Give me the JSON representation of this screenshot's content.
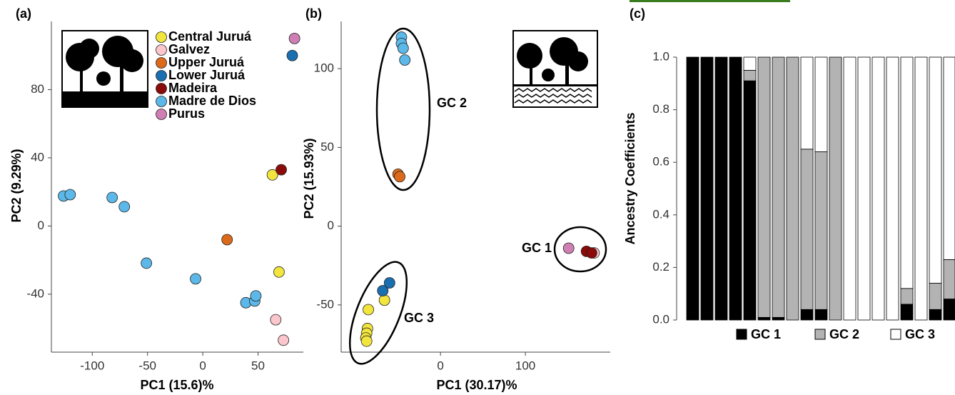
{
  "chart_data": [
    {
      "type": "scatter",
      "panel_label": "(a)",
      "x_label": "PC1 (15.6)%",
      "y_label": "PC2 (9.29%)",
      "xlim": [
        -137,
        91
      ],
      "ylim": [
        -74,
        120
      ],
      "xticks": [
        -100,
        -50,
        0,
        50
      ],
      "yticks": [
        80,
        40,
        0,
        -40
      ],
      "legend": true,
      "series": [
        {
          "name": "Central Juruá",
          "color": "#f2e53d",
          "x": [
            63,
            69
          ],
          "values": [
            30,
            -27
          ]
        },
        {
          "name": "Galvez",
          "color": "#fbc6cc",
          "x": [
            66,
            73
          ],
          "values": [
            -55,
            -67
          ]
        },
        {
          "name": "Upper Juruá",
          "color": "#dd6a1a",
          "x": [
            22
          ],
          "values": [
            -8
          ]
        },
        {
          "name": "Lower Juruá",
          "color": "#1a6fb0",
          "x": [
            81
          ],
          "values": [
            100
          ]
        },
        {
          "name": "Madeira",
          "color": "#8b0a0a",
          "x": [
            71
          ],
          "values": [
            33
          ]
        },
        {
          "name": "Madre de Dios",
          "color": "#5bb8e8",
          "x": [
            -126,
            -120,
            -82,
            -71,
            -51,
            -6.5,
            39,
            47,
            48
          ],
          "values": [
            17.6,
            18.4,
            16.7,
            11.3,
            -21.8,
            -31,
            -45,
            -44,
            -41
          ]
        },
        {
          "name": "Purus",
          "color": "#d07fb4",
          "x": [
            83
          ],
          "values": [
            110
          ]
        }
      ]
    },
    {
      "type": "scatter",
      "panel_label": "(b)",
      "x_label": "PC1 (30.17)%",
      "y_label": "PC2 (15.93%)",
      "xlim": [
        -117,
        200
      ],
      "ylim": [
        -80,
        130
      ],
      "xticks": [
        0,
        100
      ],
      "yticks": [
        100,
        50,
        0,
        -50
      ],
      "legend": false,
      "annotations": [
        "GC 2",
        "GC 3",
        "GC 1"
      ],
      "series": [
        {
          "color": "#f2e53d",
          "x": [
            -66,
            -85,
            -86,
            -87,
            -88,
            -87
          ],
          "values": [
            -47,
            -53,
            -65,
            -68,
            -71,
            -73
          ]
        },
        {
          "color": "#fbc6cc",
          "x": [
            181
          ],
          "values": [
            -17
          ]
        },
        {
          "color": "#dd6a1a",
          "x": [
            -50,
            -48
          ],
          "values": [
            33,
            31.4
          ]
        },
        {
          "color": "#1a6fb0",
          "x": [
            -68,
            -60
          ],
          "values": [
            -41,
            -36
          ]
        },
        {
          "color": "#8b0a0a",
          "x": [
            172,
            178
          ],
          "values": [
            -16,
            -17
          ]
        },
        {
          "color": "#5bb8e8",
          "x": [
            -46,
            -46,
            -44,
            -42
          ],
          "values": [
            120,
            116,
            113,
            105.5
          ]
        },
        {
          "color": "#d07fb4",
          "x": [
            151
          ],
          "values": [
            -14
          ]
        }
      ]
    },
    {
      "type": "stacked_bar",
      "panel_label": "(c)",
      "y_label": "Ancestry Coefficients",
      "ylim": [
        0,
        1
      ],
      "yticks": [
        {
          "value": 0,
          "label": "0.0"
        },
        {
          "value": 0.2,
          "label": "0.2"
        },
        {
          "value": 0.4,
          "label": "0.4"
        },
        {
          "value": 0.6,
          "label": "0.6"
        },
        {
          "value": 0.8,
          "label": "0.8"
        },
        {
          "value": 1,
          "label": "1.0"
        }
      ],
      "series": [
        {
          "name": "GC 1",
          "color": "#000000",
          "values": [
            1,
            1,
            1,
            1,
            0.91,
            0.01,
            0.01,
            0,
            0.04,
            0.04,
            0,
            0,
            0,
            0,
            0,
            0.06,
            0,
            0.04,
            0.08
          ]
        },
        {
          "name": "GC 2",
          "color": "#b3b3b3",
          "values": [
            0,
            0,
            0,
            0,
            0.04,
            0.99,
            0.99,
            1,
            0.61,
            0.6,
            1,
            0,
            0,
            0,
            0,
            0.06,
            0,
            0.1,
            0.15
          ]
        },
        {
          "name": "GC 3",
          "color": "#ffffff",
          "values": [
            0,
            0,
            0,
            0,
            0.05,
            0,
            0,
            0,
            0.35,
            0.36,
            0,
            1,
            1,
            1,
            1,
            0.88,
            1,
            0.86,
            0.77
          ]
        }
      ]
    }
  ]
}
